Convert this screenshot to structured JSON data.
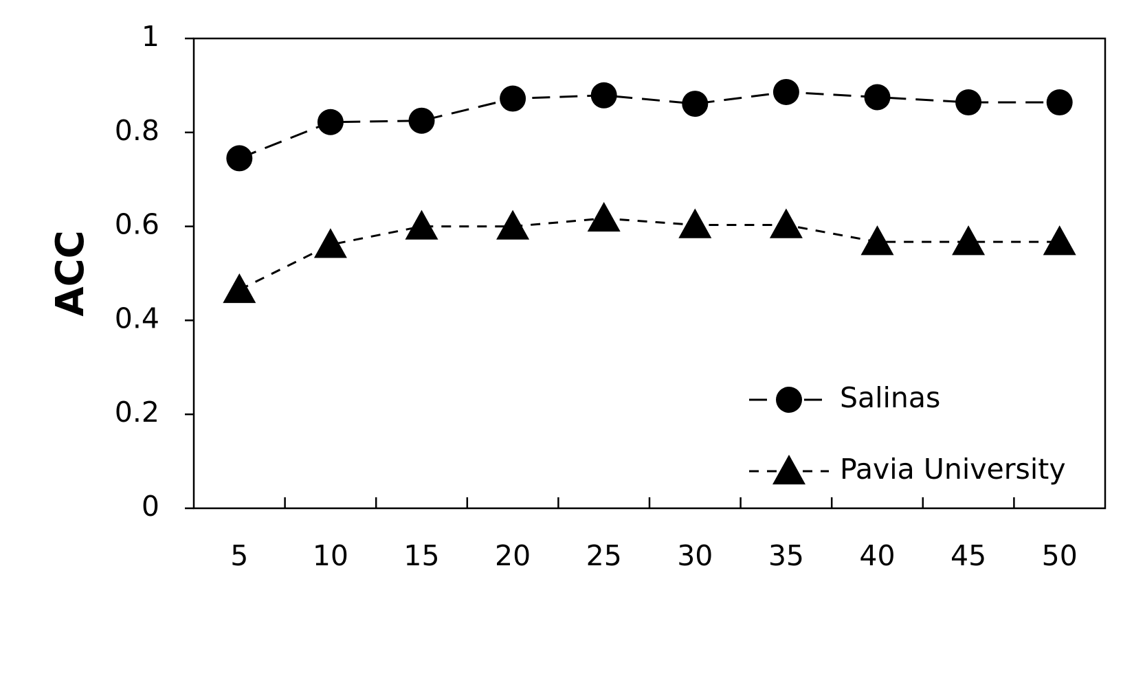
{
  "chart_data": {
    "type": "line",
    "ylabel": "ACC",
    "categories": [
      "5",
      "10",
      "15",
      "20",
      "25",
      "30",
      "35",
      "40",
      "45",
      "50"
    ],
    "series": [
      {
        "name": "Salinas",
        "color": "#000000",
        "marker": "circle",
        "dash": "long",
        "values": [
          0.745,
          0.822,
          0.825,
          0.872,
          0.879,
          0.861,
          0.886,
          0.875,
          0.864,
          0.864
        ]
      },
      {
        "name": "Pavia University",
        "color": "#000000",
        "marker": "triangle",
        "dash": "short",
        "values": [
          0.465,
          0.561,
          0.6,
          0.6,
          0.617,
          0.603,
          0.603,
          0.567,
          0.567,
          0.567
        ]
      }
    ],
    "ylim": [
      0,
      1
    ],
    "yticks": [
      0,
      0.2,
      0.4,
      0.6,
      0.8,
      1
    ],
    "grid": false,
    "legend": "lower right"
  }
}
